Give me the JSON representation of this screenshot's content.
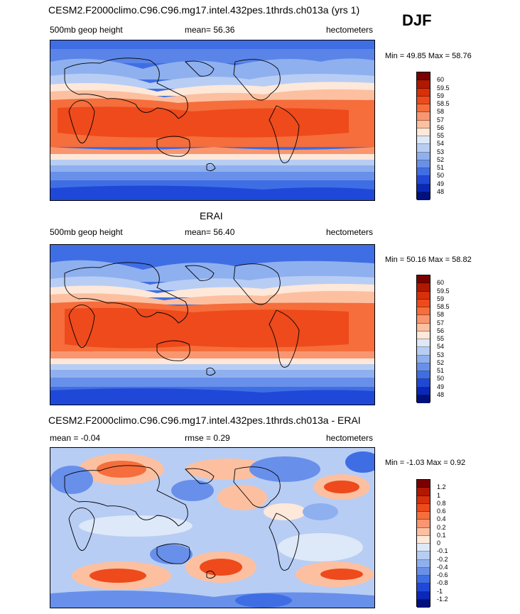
{
  "season": "DJF",
  "panels": [
    {
      "title": "CESM2.F2000climo.C96.C96.mg17.intel.432pes.1thrds.ch013a (yrs 1)",
      "left_label": "500mb geop height",
      "center_label": "mean=  56.36",
      "right_label": "hectometers",
      "minmax": "Min =  49.85 Max =  58.76",
      "colorbar_labels": [
        "60",
        "59.5",
        "59",
        "58.5",
        "58",
        "57",
        "56",
        "55",
        "54",
        "53",
        "52",
        "51",
        "50",
        "49",
        "48"
      ]
    },
    {
      "title": "ERAI",
      "left_label": "500mb geop height",
      "center_label": "mean=  56.40",
      "right_label": "hectometers",
      "minmax": "Min =  50.16 Max =  58.82",
      "colorbar_labels": [
        "60",
        "59.5",
        "59",
        "58.5",
        "58",
        "57",
        "56",
        "55",
        "54",
        "53",
        "52",
        "51",
        "50",
        "49",
        "48"
      ]
    },
    {
      "title": "CESM2.F2000climo.C96.C96.mg17.intel.432pes.1thrds.ch013a - ERAI",
      "left_label": "mean =  -0.04",
      "center_label": "rmse =   0.29",
      "right_label": "hectometers",
      "minmax": "Min =  -1.03 Max =   0.92",
      "colorbar_labels": [
        "1.2",
        "1",
        "0.8",
        "0.6",
        "0.4",
        "0.2",
        "0.1",
        "0",
        "-0.1",
        "-0.2",
        "-0.4",
        "-0.6",
        "-0.8",
        "-1",
        "-1.2"
      ]
    }
  ],
  "colors": {
    "colorbar": [
      "#7a0000",
      "#b01800",
      "#d8300a",
      "#ee4a1c",
      "#f56e3c",
      "#f99670",
      "#fcc0a0",
      "#fde8da",
      "#dde8f8",
      "#b8cdf4",
      "#8fb0ef",
      "#6890ea",
      "#3f6ee4",
      "#2048d8",
      "#0a28b8",
      "#00107c"
    ],
    "land_outline": "#000000"
  }
}
